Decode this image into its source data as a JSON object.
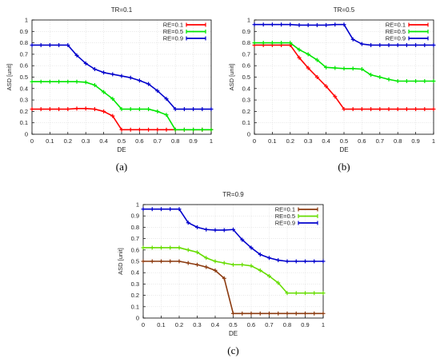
{
  "figure": {
    "panels": [
      {
        "title": "TR=0.1",
        "caption": "(a)",
        "chart_data": {
          "type": "line",
          "title": "TR=0.1",
          "xlabel": "DE",
          "ylabel": "ASD [unit]",
          "xlim": [
            0,
            1
          ],
          "ylim": [
            0,
            1
          ],
          "xticks": [
            "0",
            "0.1",
            "0.2",
            "0.3",
            "0.4",
            "0.5",
            "0.6",
            "0.7",
            "0.8",
            "0.9",
            "1"
          ],
          "yticks": [
            "0",
            "0.1",
            "0.2",
            "0.3",
            "0.4",
            "0.5",
            "0.6",
            "0.7",
            "0.8",
            "0.9",
            "1"
          ],
          "grid": true,
          "legend_position": "top-right",
          "series": [
            {
              "name": "RE=0.1",
              "color": "#ff0000",
              "x": [
                0,
                0.05,
                0.1,
                0.15,
                0.2,
                0.25,
                0.3,
                0.35,
                0.4,
                0.45,
                0.5,
                0.55,
                0.6,
                0.65,
                0.7,
                0.75,
                0.8,
                0.85,
                0.9,
                0.95,
                1
              ],
              "y": [
                0.22,
                0.22,
                0.22,
                0.22,
                0.22,
                0.225,
                0.225,
                0.22,
                0.2,
                0.16,
                0.04,
                0.04,
                0.04,
                0.04,
                0.04,
                0.04,
                0.04,
                0.04,
                0.04,
                0.04,
                0.04
              ]
            },
            {
              "name": "RE=0.5",
              "color": "#00e600",
              "x": [
                0,
                0.05,
                0.1,
                0.15,
                0.2,
                0.25,
                0.3,
                0.35,
                0.4,
                0.45,
                0.5,
                0.55,
                0.6,
                0.65,
                0.7,
                0.75,
                0.8,
                0.85,
                0.9,
                0.95,
                1
              ],
              "y": [
                0.46,
                0.46,
                0.46,
                0.46,
                0.46,
                0.46,
                0.455,
                0.43,
                0.37,
                0.31,
                0.22,
                0.22,
                0.22,
                0.22,
                0.2,
                0.17,
                0.04,
                0.04,
                0.04,
                0.04,
                0.04
              ]
            },
            {
              "name": "RE=0.9",
              "color": "#0000cc",
              "x": [
                0,
                0.05,
                0.1,
                0.15,
                0.2,
                0.25,
                0.3,
                0.35,
                0.4,
                0.45,
                0.5,
                0.55,
                0.6,
                0.65,
                0.7,
                0.75,
                0.8,
                0.85,
                0.9,
                0.95,
                1
              ],
              "y": [
                0.78,
                0.78,
                0.78,
                0.78,
                0.78,
                0.69,
                0.62,
                0.57,
                0.54,
                0.525,
                0.51,
                0.495,
                0.47,
                0.44,
                0.38,
                0.31,
                0.22,
                0.22,
                0.22,
                0.22,
                0.22
              ]
            }
          ]
        }
      },
      {
        "title": "TR=0.5",
        "caption": "(b)",
        "chart_data": {
          "type": "line",
          "title": "TR=0.5",
          "xlabel": "DE",
          "ylabel": "ASD [unit]",
          "xlim": [
            0,
            1
          ],
          "ylim": [
            0,
            1
          ],
          "xticks": [
            "0",
            "0.1",
            "0.2",
            "0.3",
            "0.4",
            "0.5",
            "0.6",
            "0.7",
            "0.8",
            "0.9",
            "1"
          ],
          "yticks": [
            "0",
            "0.1",
            "0.2",
            "0.3",
            "0.4",
            "0.5",
            "0.6",
            "0.7",
            "0.8",
            "0.9",
            "1"
          ],
          "grid": true,
          "legend_position": "top-right",
          "series": [
            {
              "name": "RE=0.1",
              "color": "#ff0000",
              "x": [
                0,
                0.05,
                0.1,
                0.15,
                0.2,
                0.25,
                0.3,
                0.35,
                0.4,
                0.45,
                0.5,
                0.55,
                0.6,
                0.65,
                0.7,
                0.75,
                0.8,
                0.85,
                0.9,
                0.95,
                1
              ],
              "y": [
                0.78,
                0.78,
                0.78,
                0.78,
                0.78,
                0.67,
                0.58,
                0.5,
                0.42,
                0.33,
                0.22,
                0.22,
                0.22,
                0.22,
                0.22,
                0.22,
                0.22,
                0.22,
                0.22,
                0.22,
                0.22
              ]
            },
            {
              "name": "RE=0.5",
              "color": "#00e600",
              "x": [
                0,
                0.05,
                0.1,
                0.15,
                0.2,
                0.25,
                0.3,
                0.35,
                0.4,
                0.45,
                0.5,
                0.55,
                0.6,
                0.65,
                0.7,
                0.75,
                0.8,
                0.85,
                0.9,
                0.95,
                1
              ],
              "y": [
                0.8,
                0.8,
                0.8,
                0.8,
                0.8,
                0.74,
                0.7,
                0.65,
                0.585,
                0.58,
                0.575,
                0.575,
                0.57,
                0.52,
                0.5,
                0.48,
                0.465,
                0.465,
                0.465,
                0.465,
                0.465
              ]
            },
            {
              "name": "RE=0.9",
              "color": "#0000cc",
              "x": [
                0,
                0.05,
                0.1,
                0.15,
                0.2,
                0.25,
                0.3,
                0.35,
                0.4,
                0.45,
                0.5,
                0.55,
                0.6,
                0.65,
                0.7,
                0.75,
                0.8,
                0.85,
                0.9,
                0.95,
                1
              ],
              "y": [
                0.96,
                0.96,
                0.96,
                0.96,
                0.96,
                0.955,
                0.955,
                0.955,
                0.955,
                0.96,
                0.96,
                0.83,
                0.79,
                0.78,
                0.78,
                0.78,
                0.78,
                0.78,
                0.78,
                0.78,
                0.78
              ]
            }
          ]
        }
      },
      {
        "title": "TR=0.9",
        "caption": "(c)",
        "chart_data": {
          "type": "line",
          "title": "TR=0.9",
          "xlabel": "DE",
          "ylabel": "ASD [unit]",
          "xlim": [
            0,
            1
          ],
          "ylim": [
            0,
            1
          ],
          "xticks": [
            "0",
            "0.1",
            "0.2",
            "0.3",
            "0.4",
            "0.5",
            "0.6",
            "0.7",
            "0.8",
            "0.9",
            "1"
          ],
          "yticks": [
            "0",
            "0.1",
            "0.2",
            "0.3",
            "0.4",
            "0.5",
            "0.6",
            "0.7",
            "0.8",
            "0.9",
            "1"
          ],
          "grid": true,
          "legend_position": "top-right",
          "series": [
            {
              "name": "RE=0.1",
              "color": "#8b3a0f",
              "x": [
                0,
                0.05,
                0.1,
                0.15,
                0.2,
                0.25,
                0.3,
                0.35,
                0.4,
                0.45,
                0.5,
                0.55,
                0.6,
                0.65,
                0.7,
                0.75,
                0.8,
                0.85,
                0.9,
                0.95,
                1
              ],
              "y": [
                0.5,
                0.5,
                0.5,
                0.5,
                0.5,
                0.485,
                0.47,
                0.45,
                0.42,
                0.35,
                0.04,
                0.04,
                0.04,
                0.04,
                0.04,
                0.04,
                0.04,
                0.04,
                0.04,
                0.04,
                0.04
              ]
            },
            {
              "name": "RE=0.5",
              "color": "#66dd00",
              "x": [
                0,
                0.05,
                0.1,
                0.15,
                0.2,
                0.25,
                0.3,
                0.35,
                0.4,
                0.45,
                0.5,
                0.55,
                0.6,
                0.65,
                0.7,
                0.75,
                0.8,
                0.85,
                0.9,
                0.95,
                1
              ],
              "y": [
                0.62,
                0.62,
                0.62,
                0.62,
                0.62,
                0.6,
                0.58,
                0.53,
                0.5,
                0.485,
                0.47,
                0.47,
                0.46,
                0.42,
                0.37,
                0.31,
                0.22,
                0.22,
                0.22,
                0.22,
                0.22
              ]
            },
            {
              "name": "RE=0.9",
              "color": "#0000cc",
              "x": [
                0,
                0.05,
                0.1,
                0.15,
                0.2,
                0.25,
                0.3,
                0.35,
                0.4,
                0.45,
                0.5,
                0.55,
                0.6,
                0.65,
                0.7,
                0.75,
                0.8,
                0.85,
                0.9,
                0.95,
                1
              ],
              "y": [
                0.96,
                0.96,
                0.96,
                0.96,
                0.96,
                0.84,
                0.8,
                0.78,
                0.775,
                0.775,
                0.78,
                0.69,
                0.62,
                0.56,
                0.53,
                0.51,
                0.5,
                0.5,
                0.5,
                0.5,
                0.5
              ]
            }
          ]
        }
      }
    ]
  }
}
